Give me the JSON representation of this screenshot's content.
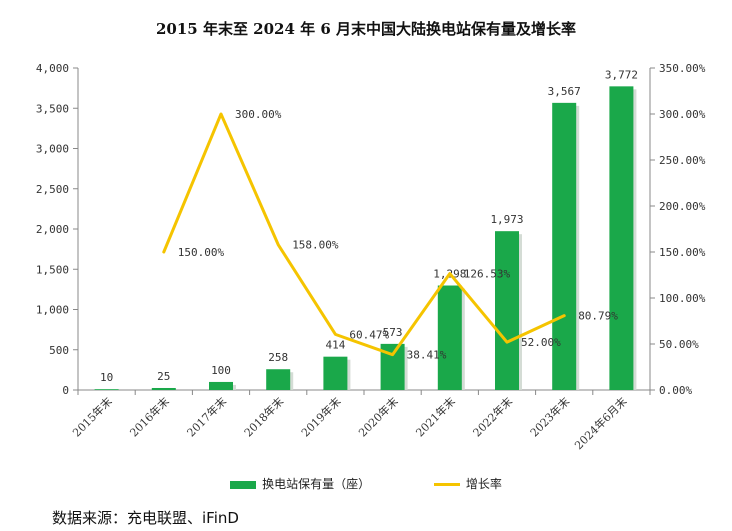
{
  "chart_data": {
    "type": "bar",
    "title": "2015 年末至 2024 年 6 月末中国大陆换电站保有量及增长率",
    "categories": [
      "2015年末",
      "2016年末",
      "2017年末",
      "2018年末",
      "2019年末",
      "2020年末",
      "2021年末",
      "2022年末",
      "2023年末",
      "2024年6月末"
    ],
    "series": [
      {
        "name": "换电站保有量（座）",
        "type": "bar",
        "axis": "left",
        "color": "#1aa84a",
        "values": [
          10,
          25,
          100,
          258,
          414,
          573,
          1298,
          1973,
          3567,
          3772
        ],
        "labels": [
          "10",
          "25",
          "100",
          "258",
          "414",
          "573",
          "1,298",
          "1,973",
          "3,567",
          "3,772"
        ]
      },
      {
        "name": "增长率",
        "type": "line",
        "axis": "right",
        "color": "#f5c400",
        "values": [
          null,
          150.0,
          300.0,
          158.0,
          60.47,
          38.41,
          126.53,
          52.0,
          80.79,
          null
        ],
        "labels": [
          "",
          "150.00%",
          "300.00%",
          "158.00%",
          "60.47%",
          "38.41%",
          "126.53%",
          "52.00%",
          "80.79%",
          ""
        ]
      }
    ],
    "y_left": {
      "min": 0,
      "max": 4000,
      "step": 500,
      "ticks": [
        "0",
        "500",
        "1,000",
        "1,500",
        "2,000",
        "2,500",
        "3,000",
        "3,500",
        "4,000"
      ]
    },
    "y_right": {
      "min": 0,
      "max": 350,
      "step": 50,
      "ticks": [
        "0.00%",
        "50.00%",
        "100.00%",
        "150.00%",
        "200.00%",
        "250.00%",
        "300.00%",
        "350.00%"
      ]
    },
    "legend_position": "bottom",
    "grid": false
  },
  "source": "数据来源：充电联盟、iFinD"
}
